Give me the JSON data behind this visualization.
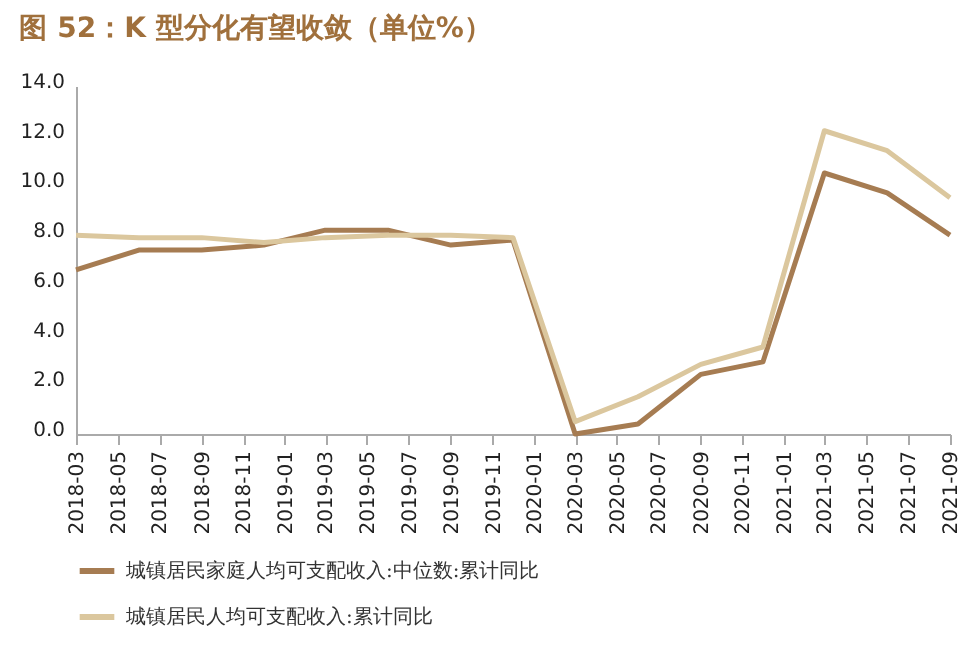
{
  "chart_data": {
    "type": "line",
    "title": "图 52：K 型分化有望收敛（单位%）",
    "x": [
      "2018-03",
      "2018-06",
      "2018-09",
      "2018-12",
      "2019-03",
      "2019-06",
      "2019-09",
      "2019-12",
      "2020-03",
      "2020-06",
      "2020-09",
      "2020-12",
      "2021-03",
      "2021-06",
      "2021-09"
    ],
    "series": [
      {
        "name": "城镇居民家庭人均可支配收入:中位数:累计同比",
        "color": "#a67c52",
        "values": [
          6.6,
          7.4,
          7.4,
          7.6,
          8.2,
          8.2,
          7.6,
          7.8,
          0.0,
          0.4,
          2.4,
          2.9,
          10.5,
          9.7,
          8.0
        ]
      },
      {
        "name": "城镇居民人均可支配收入:累计同比",
        "color": "#dbc79e",
        "values": [
          8.0,
          7.9,
          7.9,
          7.7,
          7.9,
          8.0,
          8.0,
          7.9,
          0.5,
          1.5,
          2.8,
          3.5,
          12.2,
          11.4,
          9.5
        ]
      }
    ],
    "xlim": [
      "2018-03",
      "2021-09"
    ],
    "xticks": [
      "2018-03",
      "2018-05",
      "2018-07",
      "2018-09",
      "2018-11",
      "2019-01",
      "2019-03",
      "2019-05",
      "2019-07",
      "2019-09",
      "2019-11",
      "2020-01",
      "2020-03",
      "2020-05",
      "2020-07",
      "2020-09",
      "2020-11",
      "2021-01",
      "2021-03",
      "2021-05",
      "2021-07",
      "2021-09"
    ],
    "ylim": [
      0,
      14
    ],
    "yticks": [
      {
        "value": 0,
        "label": "0.0"
      },
      {
        "value": 2,
        "label": "2.0"
      },
      {
        "value": 4,
        "label": "4.0"
      },
      {
        "value": 6,
        "label": "6.0"
      },
      {
        "value": 8,
        "label": "8.0"
      },
      {
        "value": 10,
        "label": "10.0"
      },
      {
        "value": 12,
        "label": "12.0"
      },
      {
        "value": 14,
        "label": "14.0"
      }
    ],
    "grid": false,
    "legend": "bottom",
    "marker": "none",
    "line_style": "solid"
  }
}
